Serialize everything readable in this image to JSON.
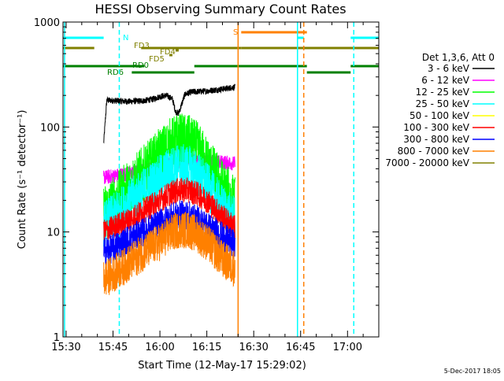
{
  "chart_data": {
    "type": "line",
    "title": "HESSI Observing Summary Count Rates",
    "xlabel": "Start Time (12-May-17 15:29:02)",
    "ylabel": "Count Rate (s⁻¹ detector⁻¹)",
    "x_start_label": "15:29:02",
    "xlim": [
      "15:29",
      "17:10"
    ],
    "ylim": [
      1,
      1000
    ],
    "yscale": "log",
    "x_ticks": [
      "15:30",
      "15:45",
      "16:00",
      "16:15",
      "16:30",
      "16:45",
      "17:00"
    ],
    "y_ticks": [
      {
        "value": 1,
        "label": "1"
      },
      {
        "value": 10,
        "label": "10"
      },
      {
        "value": 100,
        "label": "100"
      },
      {
        "value": 1000,
        "label": "1000"
      }
    ],
    "legend_title": "Det 1,3,6, Att 0",
    "legend_position": "right",
    "series": [
      {
        "name": "3 - 6 keV",
        "color": "#000000",
        "x": [
          "15:42",
          "15:43",
          "15:50",
          "15:55",
          "15:58",
          "16:00",
          "16:02",
          "16:04",
          "16:05",
          "16:06",
          "16:08",
          "16:10",
          "16:15",
          "16:20",
          "16:24"
        ],
        "y": [
          70,
          180,
          175,
          178,
          185,
          195,
          200,
          185,
          140,
          135,
          205,
          215,
          220,
          230,
          240
        ]
      },
      {
        "name": "6 - 12 keV",
        "color": "#ff00ff",
        "x": [
          "15:42",
          "15:45",
          "15:50",
          "15:55",
          "16:00",
          "16:05",
          "16:10",
          "16:15",
          "16:20",
          "16:24"
        ],
        "y": [
          33,
          34,
          36,
          39,
          42,
          46,
          48,
          47,
          46,
          45
        ]
      },
      {
        "name": "12 - 25 keV",
        "color": "#00ff00",
        "x": [
          "15:42",
          "15:45",
          "15:50",
          "15:55",
          "16:00",
          "16:03",
          "16:06",
          "16:09",
          "16:12",
          "16:15",
          "16:20",
          "16:24"
        ],
        "y": [
          15,
          18,
          26,
          36,
          52,
          64,
          72,
          70,
          60,
          44,
          26,
          18
        ]
      },
      {
        "name": "25 - 50 keV",
        "color": "#00ffff",
        "x": [
          "15:42",
          "15:45",
          "15:50",
          "15:55",
          "16:00",
          "16:03",
          "16:06",
          "16:09",
          "16:12",
          "16:15",
          "16:20",
          "16:24"
        ],
        "y": [
          12,
          14,
          19,
          25,
          33,
          39,
          42,
          41,
          36,
          28,
          17,
          13
        ]
      },
      {
        "name": "50 - 100 keV",
        "color": "#ffff00",
        "x": [],
        "y": []
      },
      {
        "name": "100 - 300 keV",
        "color": "#ff0000",
        "x": [
          "15:42",
          "15:45",
          "15:50",
          "15:55",
          "16:00",
          "16:03",
          "16:06",
          "16:09",
          "16:12",
          "16:15",
          "16:20",
          "16:24"
        ],
        "y": [
          10,
          11,
          13,
          16,
          20,
          23,
          25,
          25,
          23,
          20,
          14,
          11
        ]
      },
      {
        "name": "300 - 800 keV",
        "color": "#0000ff",
        "x": [
          "15:42",
          "15:45",
          "15:50",
          "15:55",
          "16:00",
          "16:03",
          "16:06",
          "16:09",
          "16:12",
          "16:15",
          "16:20",
          "16:24"
        ],
        "y": [
          6.5,
          7,
          8.5,
          10,
          12,
          13.5,
          14.5,
          14.5,
          13,
          11.5,
          9,
          7.5
        ]
      },
      {
        "name": "800 - 7000 keV",
        "color": "#ff8000",
        "x": [
          "15:42",
          "15:45",
          "15:50",
          "15:55",
          "16:00",
          "16:03",
          "16:06",
          "16:09",
          "16:12",
          "16:15",
          "16:20",
          "16:24"
        ],
        "y": [
          3.5,
          4,
          5,
          6.5,
          8,
          9.5,
          10.5,
          10.5,
          9.5,
          8,
          5.5,
          4.5
        ]
      },
      {
        "name": "7000 - 20000 keV",
        "color": "#808000",
        "x": [],
        "y": []
      }
    ],
    "flag_bars": [
      {
        "label": "N",
        "color": "#00ffff",
        "segments": [
          [
            "15:29",
            "15:42"
          ],
          [
            "16:44",
            "16:46"
          ],
          [
            "17:01",
            "17:10"
          ]
        ]
      },
      {
        "label": "S",
        "color": "#ff8000",
        "segments": [
          [
            "16:26",
            "16:47"
          ]
        ]
      },
      {
        "label": "FD3",
        "color": "#808000",
        "segments": [
          [
            "15:29",
            "15:39"
          ],
          [
            "15:54",
            "16:26"
          ],
          [
            "16:26",
            "17:10"
          ]
        ]
      },
      {
        "label": "FD4",
        "color": "#808000",
        "segments": [
          [
            "16:05",
            "16:06"
          ]
        ]
      },
      {
        "label": "FD5",
        "color": "#808000",
        "segments": [
          [
            "16:03",
            "16:04"
          ]
        ]
      },
      {
        "label": "RD0",
        "color": "#008000",
        "segments": [
          [
            "15:29",
            "15:55"
          ],
          [
            "16:11",
            "16:47"
          ],
          [
            "17:01",
            "17:10"
          ]
        ]
      },
      {
        "label": "RD6",
        "color": "#008000",
        "segments": [
          [
            "15:51",
            "16:11"
          ],
          [
            "16:47",
            "17:01"
          ]
        ]
      }
    ],
    "vertical_lines": [
      {
        "x": "15:29:30",
        "color": "#00ffff",
        "style": "solid"
      },
      {
        "x": "15:47",
        "color": "#00ffff",
        "style": "dashed"
      },
      {
        "x": "16:25",
        "color": "#ff8000",
        "style": "solid"
      },
      {
        "x": "16:44",
        "color": "#00ffff",
        "style": "solid"
      },
      {
        "x": "16:46",
        "color": "#ff8000",
        "style": "dashed"
      },
      {
        "x": "17:02",
        "color": "#00ffff",
        "style": "dashed"
      }
    ],
    "footer_date": "5-Dec-2017 18:05"
  }
}
